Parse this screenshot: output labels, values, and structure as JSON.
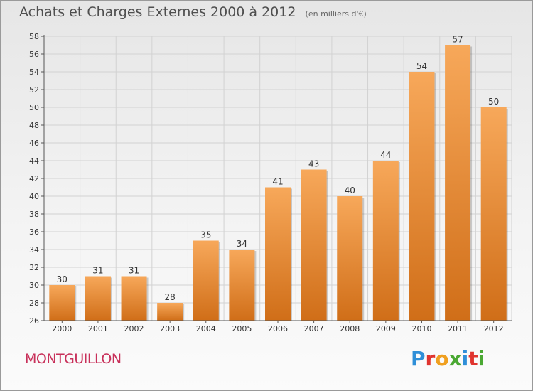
{
  "chart_data": {
    "type": "bar",
    "title": "Achats et Charges Externes 2000 à 2012",
    "subtitle": "(en milliers d'€)",
    "categories": [
      "2000",
      "2001",
      "2002",
      "2003",
      "2004",
      "2005",
      "2006",
      "2007",
      "2008",
      "2009",
      "2010",
      "2011",
      "2012"
    ],
    "values": [
      30,
      31,
      31,
      28,
      35,
      34,
      41,
      43,
      40,
      44,
      54,
      57,
      50
    ],
    "ylim": [
      26,
      58
    ],
    "yticks": [
      26,
      28,
      30,
      32,
      34,
      36,
      38,
      40,
      42,
      44,
      46,
      48,
      50,
      52,
      54,
      56,
      58
    ],
    "grid": true,
    "xlabel": "",
    "ylabel": "",
    "bar_color_top": "#f7a85a",
    "bar_color_bottom": "#d06e18"
  },
  "footer": {
    "commune": "MONTGUILLON",
    "logo_letters": [
      {
        "ch": "P",
        "color": "#2f8fd8"
      },
      {
        "ch": "r",
        "color": "#e0342f"
      },
      {
        "ch": "o",
        "color": "#f0a020"
      },
      {
        "ch": "x",
        "color": "#4aa832"
      },
      {
        "ch": "i",
        "color": "#2f8fd8"
      },
      {
        "ch": "t",
        "color": "#e0342f"
      },
      {
        "ch": "i",
        "color": "#4aa832"
      }
    ]
  }
}
